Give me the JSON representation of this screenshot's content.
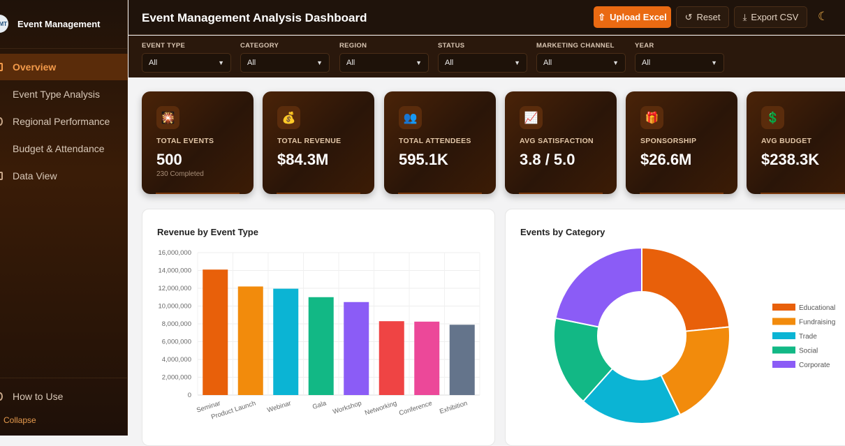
{
  "sidebar": {
    "logo_text": "MT",
    "brand": "Event Management",
    "items": [
      {
        "label": "Overview",
        "active": true
      },
      {
        "label": "Event Type Analysis"
      },
      {
        "label": "Regional Performance"
      },
      {
        "label": "Budget & Attendance"
      },
      {
        "label": "Data View"
      }
    ],
    "help": "How to Use",
    "collapse": "Collapse"
  },
  "header": {
    "title": "Event Management Analysis Dashboard",
    "upload": "Upload Excel",
    "reset": "Reset",
    "export": "Export CSV",
    "theme_icon": "moon-icon",
    "accent": "#ea6a12"
  },
  "filters": [
    {
      "label": "EVENT TYPE",
      "value": "All"
    },
    {
      "label": "CATEGORY",
      "value": "All"
    },
    {
      "label": "REGION",
      "value": "All"
    },
    {
      "label": "STATUS",
      "value": "All"
    },
    {
      "label": "MARKETING CHANNEL",
      "value": "All"
    },
    {
      "label": "YEAR",
      "value": "All"
    }
  ],
  "kpis": [
    {
      "icon": "🎇",
      "label": "TOTAL EVENTS",
      "value": "500",
      "sub": "230 Completed"
    },
    {
      "icon": "💰",
      "label": "TOTAL REVENUE",
      "value": "$84.3M"
    },
    {
      "icon": "👥",
      "label": "TOTAL ATTENDEES",
      "value": "595.1K"
    },
    {
      "icon": "📈",
      "label": "AVG SATISFACTION",
      "value": "3.8 / 5.0"
    },
    {
      "icon": "🎁",
      "label": "SPONSORSHIP",
      "value": "$26.6M"
    },
    {
      "icon": "💲",
      "label": "AVG BUDGET",
      "value": "$238.3K"
    }
  ],
  "chart_data": [
    {
      "type": "bar",
      "title": "Revenue by Event Type",
      "categories": [
        "Seminar",
        "Product Launch",
        "Webinar",
        "Gala",
        "Workshop",
        "Networking",
        "Conference",
        "Exhibition"
      ],
      "values": [
        14100000,
        12200000,
        11950000,
        11000000,
        10450000,
        8300000,
        8250000,
        7900000
      ],
      "colors": [
        "#e8600a",
        "#f28b0c",
        "#0bb4d4",
        "#12b885",
        "#8b5cf6",
        "#ef4444",
        "#ec4899",
        "#64748b"
      ],
      "ylim": [
        0,
        16000000
      ],
      "yticks": [
        "0",
        "2,000,000",
        "4,000,000",
        "6,000,000",
        "8,000,000",
        "10,000,000",
        "12,000,000",
        "14,000,000",
        "16,000,000"
      ],
      "grid": true
    },
    {
      "type": "pie",
      "donut": true,
      "title": "Events by Category",
      "categories": [
        "Educational",
        "Fundraising",
        "Trade",
        "Social",
        "Corporate"
      ],
      "values": [
        117,
        97,
        94,
        83,
        109
      ],
      "colors": [
        "#e8600a",
        "#f28b0c",
        "#0bb4d4",
        "#12b885",
        "#8b5cf6"
      ],
      "legend": "right"
    }
  ]
}
